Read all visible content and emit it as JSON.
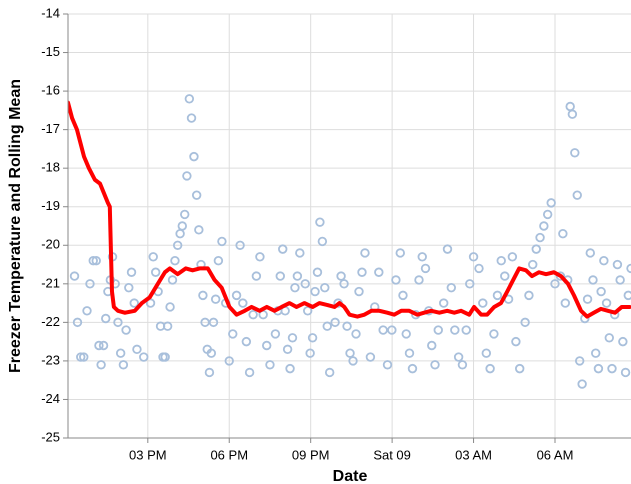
{
  "chart_data": {
    "type": "scatter",
    "x_label": "Date",
    "y_label": "Freezer Temperature and Rolling Mean",
    "xlim": [
      12.06,
      32.8
    ],
    "xticks": [
      {
        "value": 15,
        "label": "03 PM"
      },
      {
        "value": 18,
        "label": "06 PM"
      },
      {
        "value": 21,
        "label": "09 PM"
      },
      {
        "value": 24,
        "label": "Sat 09"
      },
      {
        "value": 27,
        "label": "03 AM"
      },
      {
        "value": 30,
        "label": "06 AM"
      }
    ],
    "ylim": [
      -25,
      -14
    ],
    "yticks": [
      -25,
      -24,
      -23,
      -22,
      -21,
      -20,
      -19,
      -18,
      -17,
      -16,
      -15,
      -14
    ],
    "grid": true,
    "series": [
      {
        "type": "scatter",
        "color": "#a8bfdb",
        "x": [
          12.3,
          12.41,
          12.53,
          12.64,
          12.76,
          12.87,
          12.99,
          13.1,
          13.2,
          13.28,
          13.37,
          13.45,
          13.53,
          13.62,
          13.7,
          13.8,
          13.9,
          14.0,
          14.1,
          14.2,
          14.3,
          14.4,
          14.5,
          14.6,
          14.85,
          15.1,
          15.2,
          15.29,
          15.38,
          15.47,
          15.56,
          15.64,
          15.73,
          15.82,
          15.91,
          16.0,
          16.1,
          16.19,
          16.27,
          16.36,
          16.44,
          16.53,
          16.61,
          16.7,
          16.8,
          16.88,
          16.96,
          17.03,
          17.11,
          17.19,
          17.27,
          17.34,
          17.42,
          17.5,
          17.6,
          17.73,
          17.87,
          18.0,
          18.13,
          18.27,
          18.4,
          18.5,
          18.63,
          18.75,
          18.88,
          19.0,
          19.13,
          19.25,
          19.38,
          19.5,
          19.7,
          19.79,
          19.88,
          19.97,
          20.06,
          20.15,
          20.24,
          20.33,
          20.42,
          20.51,
          20.6,
          20.8,
          20.89,
          20.98,
          21.07,
          21.16,
          21.25,
          21.34,
          21.43,
          21.52,
          21.61,
          21.7,
          21.9,
          22.01,
          22.12,
          22.23,
          22.34,
          22.45,
          22.56,
          22.67,
          22.78,
          22.89,
          23.0,
          23.2,
          23.36,
          23.51,
          23.67,
          23.83,
          23.99,
          24.14,
          24.3,
          24.4,
          24.52,
          24.64,
          24.75,
          24.87,
          24.99,
          25.11,
          25.23,
          25.35,
          25.46,
          25.58,
          25.7,
          25.9,
          26.04,
          26.18,
          26.31,
          26.45,
          26.59,
          26.73,
          26.86,
          27.0,
          27.2,
          27.34,
          27.47,
          27.61,
          27.75,
          27.88,
          28.02,
          28.15,
          28.29,
          28.43,
          28.56,
          28.7,
          28.9,
          29.04,
          29.18,
          29.31,
          29.45,
          29.59,
          29.73,
          29.86,
          30.0,
          30.2,
          30.29,
          30.38,
          30.47,
          30.56,
          30.64,
          30.73,
          30.82,
          30.91,
          31.0,
          31.1,
          31.2,
          31.3,
          31.4,
          31.5,
          31.6,
          31.7,
          31.8,
          31.9,
          32.0,
          32.1,
          32.2,
          32.3,
          32.4,
          32.5,
          32.6,
          32.7,
          32.8
        ],
        "values": [
          -20.8,
          -22.0,
          -22.9,
          -22.9,
          -21.7,
          -21.0,
          -20.4,
          -20.4,
          -22.6,
          -23.1,
          -22.6,
          -21.9,
          -21.2,
          -20.9,
          -20.3,
          -21.0,
          -22.0,
          -22.8,
          -23.1,
          -22.2,
          -21.1,
          -20.7,
          -21.5,
          -22.7,
          -22.9,
          -21.5,
          -20.3,
          -20.7,
          -21.2,
          -22.1,
          -22.9,
          -22.9,
          -22.1,
          -21.6,
          -20.9,
          -20.4,
          -20.0,
          -19.7,
          -19.5,
          -19.2,
          -18.2,
          -16.2,
          -16.7,
          -17.7,
          -18.7,
          -19.6,
          -20.5,
          -21.3,
          -22.0,
          -22.7,
          -23.3,
          -22.8,
          -22.0,
          -21.4,
          -20.4,
          -19.9,
          -21.5,
          -23.0,
          -22.3,
          -21.3,
          -20.0,
          -21.5,
          -22.5,
          -23.3,
          -21.8,
          -20.8,
          -20.3,
          -21.8,
          -22.6,
          -23.1,
          -22.3,
          -21.7,
          -20.8,
          -20.1,
          -21.7,
          -22.7,
          -23.2,
          -22.4,
          -21.1,
          -20.8,
          -20.2,
          -21.0,
          -21.7,
          -22.8,
          -22.4,
          -21.2,
          -20.7,
          -19.4,
          -19.9,
          -21.1,
          -22.1,
          -23.3,
          -22.0,
          -21.5,
          -20.8,
          -21.0,
          -22.1,
          -22.8,
          -23.0,
          -22.3,
          -21.2,
          -20.7,
          -20.2,
          -22.9,
          -21.6,
          -20.7,
          -22.2,
          -23.1,
          -22.2,
          -20.9,
          -20.2,
          -21.3,
          -22.3,
          -22.8,
          -23.2,
          -21.8,
          -20.9,
          -20.3,
          -20.6,
          -21.7,
          -22.6,
          -23.1,
          -22.2,
          -21.5,
          -20.1,
          -21.1,
          -22.2,
          -22.9,
          -23.1,
          -22.2,
          -21.0,
          -20.3,
          -20.6,
          -21.5,
          -22.8,
          -23.2,
          -22.3,
          -21.3,
          -20.4,
          -20.8,
          -21.4,
          -20.3,
          -22.5,
          -23.2,
          -22.0,
          -21.3,
          -20.5,
          -20.1,
          -19.8,
          -19.5,
          -19.2,
          -18.9,
          -21.0,
          -20.8,
          -19.7,
          -21.5,
          -20.9,
          -16.4,
          -16.6,
          -17.6,
          -18.7,
          -23.0,
          -23.6,
          -21.9,
          -21.4,
          -20.2,
          -20.9,
          -22.8,
          -23.2,
          -21.2,
          -20.4,
          -21.5,
          -22.4,
          -23.2,
          -21.8,
          -20.5,
          -20.9,
          -22.5,
          -23.3,
          -21.3,
          -20.6
        ]
      },
      {
        "type": "line",
        "color": "#ff0000",
        "x": [
          12.06,
          12.21,
          12.39,
          12.65,
          12.83,
          13.05,
          13.24,
          13.53,
          13.6,
          13.68,
          13.75,
          13.9,
          14.15,
          14.52,
          14.78,
          15.07,
          15.37,
          15.63,
          15.81,
          16.1,
          16.4,
          16.65,
          16.91,
          17.21,
          17.46,
          17.72,
          18.01,
          18.27,
          18.57,
          18.82,
          19.12,
          19.38,
          19.67,
          19.93,
          20.22,
          20.48,
          20.77,
          21.07,
          21.32,
          21.62,
          21.88,
          22.06,
          22.24,
          22.43,
          22.72,
          22.98,
          23.24,
          23.53,
          23.82,
          24.08,
          24.34,
          24.63,
          24.93,
          25.18,
          25.44,
          25.74,
          26.03,
          26.29,
          26.54,
          26.84,
          27.02,
          27.28,
          27.5,
          27.76,
          28.01,
          28.24,
          28.46,
          28.68,
          28.93,
          29.15,
          29.41,
          29.67,
          29.96,
          30.22,
          30.48,
          30.7,
          30.96,
          31.18,
          31.43,
          31.69,
          31.95,
          32.21,
          32.46,
          32.75
        ],
        "values": [
          -16.3,
          -16.7,
          -17.0,
          -17.7,
          -18.0,
          -18.3,
          -18.4,
          -18.9,
          -19.0,
          -21.2,
          -21.6,
          -21.7,
          -21.75,
          -21.7,
          -21.5,
          -21.35,
          -21.0,
          -20.7,
          -20.6,
          -20.75,
          -20.6,
          -20.65,
          -20.6,
          -20.6,
          -20.9,
          -21.1,
          -21.6,
          -21.8,
          -21.7,
          -21.6,
          -21.7,
          -21.6,
          -21.7,
          -21.6,
          -21.5,
          -21.6,
          -21.5,
          -21.6,
          -21.5,
          -21.55,
          -21.6,
          -21.5,
          -21.6,
          -21.8,
          -21.85,
          -21.8,
          -21.7,
          -21.7,
          -21.75,
          -21.8,
          -21.7,
          -21.7,
          -21.8,
          -21.75,
          -21.7,
          -21.75,
          -21.7,
          -21.75,
          -21.7,
          -21.8,
          -21.6,
          -21.8,
          -21.8,
          -21.6,
          -21.5,
          -21.2,
          -20.9,
          -20.6,
          -20.65,
          -20.8,
          -20.7,
          -20.75,
          -20.7,
          -20.8,
          -21.0,
          -21.3,
          -21.7,
          -21.85,
          -21.75,
          -21.65,
          -21.7,
          -21.75,
          -21.6,
          -21.6
        ]
      }
    ]
  }
}
